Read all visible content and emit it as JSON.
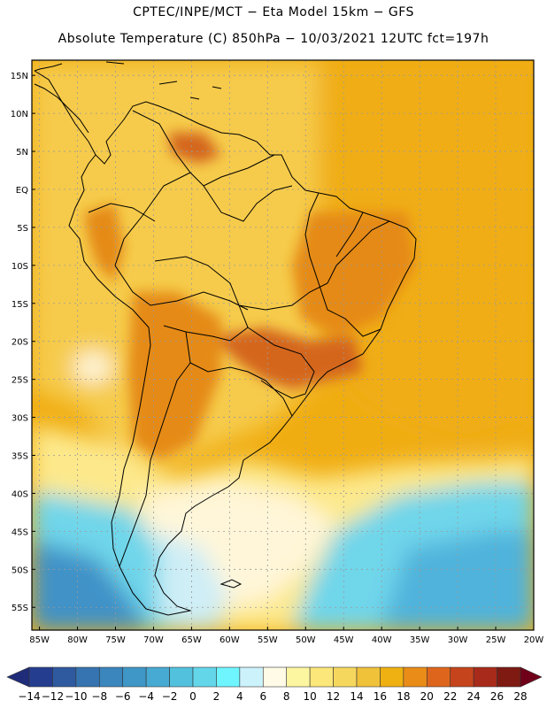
{
  "header": {
    "line1": "CPTEC/INPE/MCT −  Eta Model 15km − GFS",
    "line2": "Absolute Temperature (C) 850hPa − 10/03/2021 12UTC fct=197h"
  },
  "map": {
    "lat_labels": [
      "15N",
      "10N",
      "5N",
      "EQ",
      "5S",
      "10S",
      "15S",
      "20S",
      "25S",
      "30S",
      "35S",
      "40S",
      "45S",
      "50S",
      "55S"
    ],
    "lon_labels": [
      "85W",
      "80W",
      "75W",
      "70W",
      "65W",
      "60W",
      "55W",
      "50W",
      "45W",
      "40W",
      "35W",
      "30W",
      "25W",
      "20W"
    ],
    "lat_values": [
      15,
      10,
      5,
      0,
      -5,
      -10,
      -15,
      -20,
      -25,
      -30,
      -35,
      -40,
      -45,
      -50,
      -55
    ],
    "lon_values": [
      -85,
      -80,
      -75,
      -70,
      -65,
      -60,
      -55,
      -50,
      -45,
      -40,
      -35,
      -30,
      -25,
      -20
    ],
    "extent": {
      "lon_min": -86,
      "lon_max": -20,
      "lat_min": -58,
      "lat_max": 17
    },
    "palette": {
      "ocean_south_deep": "#3f92c7",
      "ocean_south": "#4fb3dc",
      "ocean_cyan": "#6fd6ea",
      "ocean_pale": "#cfeef6",
      "cream": "#fff6d9",
      "pale_yellow": "#fde98c",
      "light_orange": "#f6cb4c",
      "orange": "#f0ad12",
      "deep_orange": "#e58a16",
      "red_orange": "#d4661c",
      "grid": "#9a9a9a"
    }
  },
  "colorbar": {
    "labels": [
      "-14",
      "-12",
      "-10",
      "-8",
      "-6",
      "-4",
      "-2",
      "0",
      "2",
      "4",
      "6",
      "8",
      "10",
      "12",
      "14",
      "16",
      "18",
      "20",
      "22",
      "24",
      "26",
      "28"
    ],
    "colors": [
      "#253d8f",
      "#2f5a9f",
      "#3574b0",
      "#3a86bd",
      "#3e97c6",
      "#47aad2",
      "#52c1dd",
      "#63d6ea",
      "#6ff5ff",
      "#ccf2fb",
      "#fffbe6",
      "#fdf6a0",
      "#fce77a",
      "#f6d75e",
      "#f0c23a",
      "#efb012",
      "#e98c18",
      "#de661c",
      "#c5441c",
      "#a82a1a",
      "#7e1a12"
    ],
    "low_end_color": "#1f2c79",
    "high_end_color": "#70001a"
  }
}
